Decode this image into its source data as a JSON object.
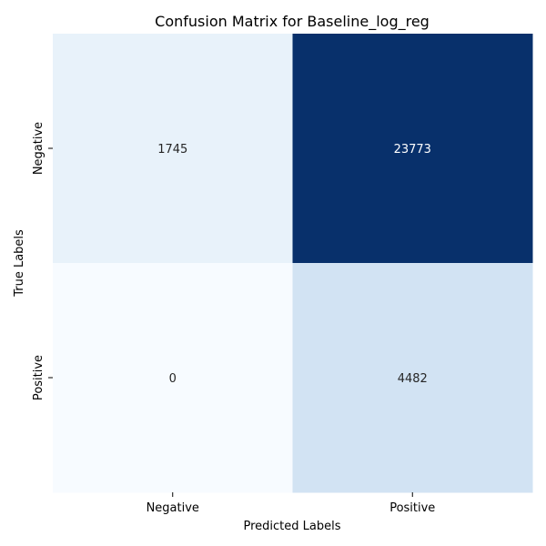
{
  "chart_data": {
    "type": "heatmap",
    "title": "Confusion Matrix for Baseline_log_reg",
    "xlabel": "Predicted Labels",
    "ylabel": "True Labels",
    "x_categories": [
      "Negative",
      "Positive"
    ],
    "y_categories": [
      "Negative",
      "Positive"
    ],
    "values": [
      [
        1745,
        23773
      ],
      [
        0,
        4482
      ]
    ],
    "colormap": "Blues",
    "colorbar": false,
    "colors": {
      "low": "#f7fbff",
      "high": "#08306b",
      "text_dark": "#262626",
      "text_light": "#ffffff"
    }
  }
}
